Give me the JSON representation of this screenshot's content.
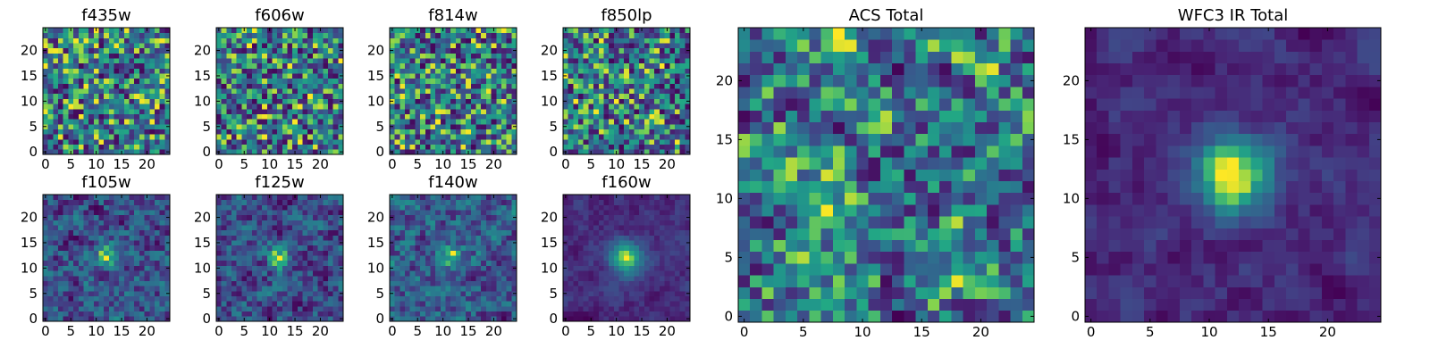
{
  "chart_data": {
    "type": "heatmap",
    "colormap": "viridis",
    "grid_size": [
      25,
      25
    ],
    "origin": "lower",
    "grid": false,
    "panels": [
      {
        "title": "f435w",
        "group": "small",
        "pattern": "noise",
        "seed": 11,
        "peak": null,
        "xticks": [
          0,
          5,
          10,
          15,
          20
        ],
        "yticks": [
          0,
          5,
          10,
          15,
          20
        ],
        "xlim": [
          0,
          24
        ],
        "ylim": [
          0,
          24
        ]
      },
      {
        "title": "f606w",
        "group": "small",
        "pattern": "noise",
        "seed": 23,
        "peak": null,
        "xticks": [
          0,
          5,
          10,
          15,
          20
        ],
        "yticks": [
          0,
          5,
          10,
          15,
          20
        ],
        "xlim": [
          0,
          24
        ],
        "ylim": [
          0,
          24
        ]
      },
      {
        "title": "f814w",
        "group": "small",
        "pattern": "noise",
        "seed": 37,
        "peak": null,
        "xticks": [
          0,
          5,
          10,
          15,
          20
        ],
        "yticks": [
          0,
          5,
          10,
          15,
          20
        ],
        "xlim": [
          0,
          24
        ],
        "ylim": [
          0,
          24
        ]
      },
      {
        "title": "f850lp",
        "group": "small",
        "pattern": "noise",
        "seed": 53,
        "peak": null,
        "xticks": [
          0,
          5,
          10,
          15,
          20
        ],
        "yticks": [
          0,
          5,
          10,
          15,
          20
        ],
        "xlim": [
          0,
          24
        ],
        "ylim": [
          0,
          24
        ]
      },
      {
        "title": "f105w",
        "group": "small",
        "pattern": "faint-source",
        "seed": 61,
        "peak": [
          12,
          12
        ],
        "xticks": [
          0,
          5,
          10,
          15,
          20
        ],
        "yticks": [
          0,
          5,
          10,
          15,
          20
        ],
        "xlim": [
          0,
          24
        ],
        "ylim": [
          0,
          24
        ]
      },
      {
        "title": "f125w",
        "group": "small",
        "pattern": "faint-source",
        "seed": 71,
        "peak": [
          12,
          12
        ],
        "xticks": [
          0,
          5,
          10,
          15,
          20
        ],
        "yticks": [
          0,
          5,
          10,
          15,
          20
        ],
        "xlim": [
          0,
          24
        ],
        "ylim": [
          0,
          24
        ]
      },
      {
        "title": "f140w",
        "group": "small",
        "pattern": "faint-source",
        "seed": 83,
        "peak": [
          12,
          12
        ],
        "xticks": [
          0,
          5,
          10,
          15,
          20
        ],
        "yticks": [
          0,
          5,
          10,
          15,
          20
        ],
        "xlim": [
          0,
          24
        ],
        "ylim": [
          0,
          24
        ]
      },
      {
        "title": "f160w",
        "group": "small",
        "pattern": "bright-source",
        "seed": 97,
        "peak": [
          12,
          12
        ],
        "xticks": [
          0,
          5,
          10,
          15,
          20
        ],
        "yticks": [
          0,
          5,
          10,
          15,
          20
        ],
        "xlim": [
          0,
          24
        ],
        "ylim": [
          0,
          24
        ]
      },
      {
        "title": "ACS Total",
        "group": "large",
        "pattern": "noise-smooth",
        "seed": 101,
        "peak": null,
        "xticks": [
          0,
          5,
          10,
          15,
          20
        ],
        "yticks": [
          0,
          5,
          10,
          15,
          20
        ],
        "xlim": [
          0,
          24
        ],
        "ylim": [
          0,
          24
        ]
      },
      {
        "title": "WFC3 IR Total",
        "group": "large",
        "pattern": "bright-source",
        "seed": 113,
        "peak": [
          12,
          12
        ],
        "xticks": [
          0,
          5,
          10,
          15,
          20
        ],
        "yticks": [
          0,
          5,
          10,
          15,
          20
        ],
        "xlim": [
          0,
          24
        ],
        "ylim": [
          0,
          24
        ]
      }
    ]
  }
}
